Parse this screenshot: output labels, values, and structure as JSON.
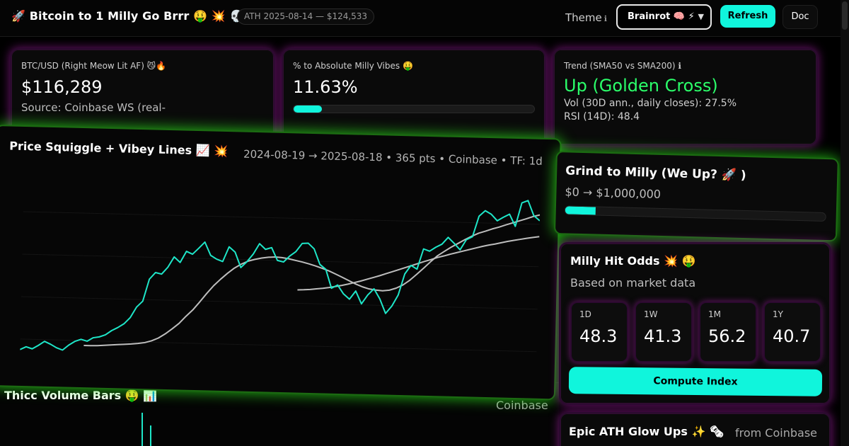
{
  "header": {
    "title": "🚀  Bitcoin to 1 Milly Go Brrr 🤑 💥 💀",
    "ath_pill": "ATH 2025-08-14 — $124,533",
    "theme_label": "Theme",
    "theme_info": "ℹ",
    "theme_value": "Brainrot 🧠 ⚡",
    "refresh_label": "Refresh",
    "doc_label": "Doc"
  },
  "stats": {
    "price": {
      "label": "BTC/USD (Right Meow Lit AF) 😼🔥",
      "value": "$116,289",
      "source": "Source: Coinbase WS (real-"
    },
    "pct": {
      "label": "% to Absolute Milly Vibes 🤑",
      "value": "11.63%",
      "progress": 0.1163
    },
    "trend": {
      "label": "Trend (SMA50 vs SMA200) ℹ",
      "value": "Up (Golden Cross)",
      "vol": "Vol (30D ann., daily closes): 27.5%",
      "rsi": "RSI (14D): 48.4"
    }
  },
  "price_panel": {
    "title": "Price Squiggle + Vibey Lines 📈 💥",
    "meta": "2024-08-19 → 2025-08-18 • 365 pts • Coinbase • TF: 1d"
  },
  "volume_panel": {
    "title": "Thicc Volume Bars 🤑 📊",
    "source": "Coinbase"
  },
  "grind": {
    "title": "Grind to Milly (We Up? 🚀 )",
    "range": "$0 → $1,000,000",
    "progress": 0.1163
  },
  "odds": {
    "title": "Milly Hit Odds 💥 🤑",
    "subtitle": "Based on market data",
    "boxes": [
      {
        "label": "1D",
        "value": "48.3"
      },
      {
        "label": "1W",
        "value": "41.3"
      },
      {
        "label": "1M",
        "value": "56.2"
      },
      {
        "label": "1Y",
        "value": "40.7"
      }
    ],
    "compute_label": "Compute Index"
  },
  "ath_section": {
    "title": "Epic ATH Glow Ups ✨ 🗞",
    "source": "from Coinbase"
  },
  "colors": {
    "accent": "#10f5dc",
    "trend_up": "#2bff6a",
    "glow_green": "#30ff1e",
    "glow_purple": "#cc22cc",
    "price_line": "#1ee6c8",
    "sma_line": "#bdbdbd"
  },
  "chart_data": {
    "type": "line",
    "x_start": "2024-08-19",
    "x_end": "2025-08-18",
    "series": [
      {
        "name": "",
        "values": [
          58200,
          59400,
          58600,
          60100,
          61800,
          60700,
          59300,
          58400,
          60500,
          62100,
          63000,
          62300,
          63800,
          64200,
          65100,
          66900,
          68200,
          69800,
          72400,
          76800,
          79300,
          88400,
          91200,
          90600,
          93500,
          97800,
          95600,
          100200,
          99100,
          101600,
          104200,
          98800,
          97300,
          96400,
          102500,
          100400,
          94100,
          96600,
          99800,
          104100,
          101800,
          102600,
          97400,
          96800,
          99300,
          101200,
          104600,
          104800,
          102500,
          96200,
          94200,
          86500,
          87900,
          84300,
          82200,
          85600,
          80400,
          84100,
          86700,
          82600,
          76700,
          79800,
          84400,
          93100,
          96700,
          95200,
          103600,
          102700,
          104400,
          105700,
          108600,
          106200,
          103600,
          107800,
          109100,
          117600,
          119900,
          118500,
          115900,
          117400,
          118700,
          113800,
          123500,
          124500,
          118400,
          116300
        ]
      },
      {
        "name": "",
        "values": [
          60500,
          60500,
          60600,
          60800,
          61000,
          61200,
          61400,
          61600,
          61900,
          62300,
          63100,
          64300,
          66100,
          68200,
          70500,
          73500,
          76200,
          79600,
          83100,
          86400,
          89100,
          91600,
          93800,
          95500,
          96800,
          97600,
          98200,
          98600,
          98800,
          98600,
          98200,
          97600,
          97000,
          96300,
          95500,
          94600,
          93600,
          92400,
          91100,
          89800,
          88500,
          87400,
          86600,
          86200,
          86000,
          86300,
          87200,
          88600,
          90600,
          93100,
          95700,
          98400,
          100900,
          102800,
          104600,
          106200,
          107800,
          109300,
          110600,
          111500,
          112500,
          113300,
          114300,
          115200,
          116100,
          117000,
          118000,
          118700
        ]
      },
      {
        "name": "",
        "values": [
          85500,
          85600,
          85800,
          86100,
          86400,
          86800,
          87300,
          87800,
          88400,
          89100,
          89800,
          90600,
          91400,
          92200,
          93100,
          94000,
          94900,
          95800,
          96700,
          97600,
          98500,
          99300,
          100200,
          100900,
          101700,
          102400,
          103100,
          103800,
          104500,
          105200,
          105800,
          106300,
          106900,
          107500,
          108000,
          108500,
          109000,
          109400,
          109800
        ]
      }
    ],
    "ylim": [
      50000,
      130000
    ]
  }
}
